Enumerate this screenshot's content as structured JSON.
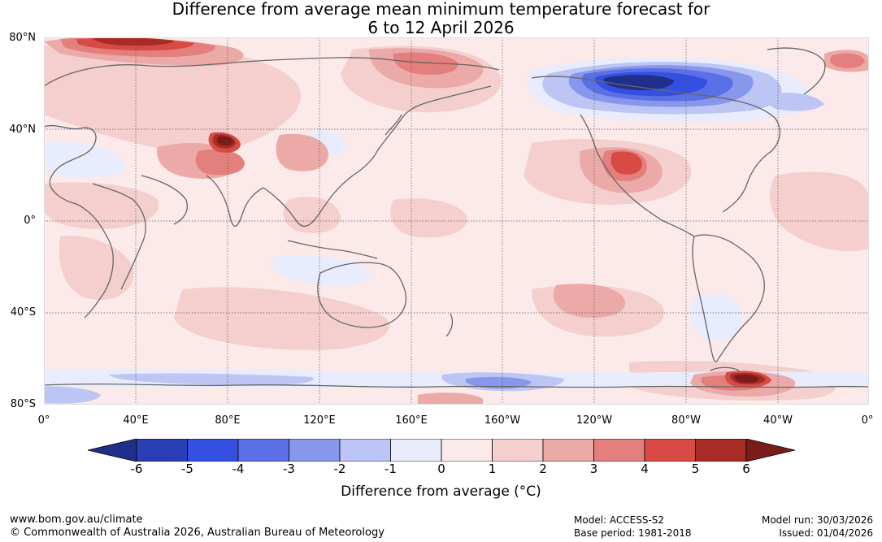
{
  "title": {
    "line1": "Difference from average mean minimum temperature forecast for",
    "line2": "6 to 12 April 2026"
  },
  "map": {
    "lat_labels": [
      "80°N",
      "40°N",
      "0°",
      "40°S",
      "80°S"
    ],
    "lon_labels": [
      "0°",
      "40°E",
      "80°E",
      "120°E",
      "160°E",
      "160°W",
      "120°W",
      "80°W",
      "40°W",
      "0°"
    ]
  },
  "colorbar": {
    "ticks": [
      "-6",
      "-5",
      "-4",
      "-3",
      "-2",
      "-1",
      "0",
      "1",
      "2",
      "3",
      "4",
      "5",
      "6"
    ],
    "colors": [
      "#1f2f8a",
      "#2a3fb5",
      "#3550e0",
      "#5b70e5",
      "#8797ec",
      "#bcc5f4",
      "#e8ecfc",
      "#fce9e9",
      "#f4cfce",
      "#eba9a7",
      "#e37f7d",
      "#d94a44",
      "#a82c26",
      "#7a1d18"
    ],
    "label": "Difference from average (°C)"
  },
  "footer": {
    "website": "www.bom.gov.au/climate",
    "copyright": "© Commonwealth of Australia 2026, Australian Bureau of Meteorology",
    "model": "Model: ACCESS-S2",
    "base_period": "Base period: 1981-2018",
    "model_run": "Model run: 30/03/2026",
    "issued": "Issued: 01/04/2026"
  }
}
